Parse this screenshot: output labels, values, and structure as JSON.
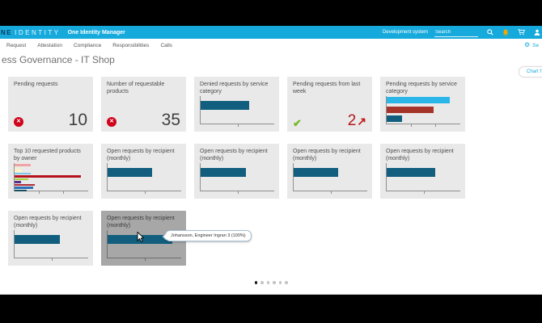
{
  "header": {
    "brand_prefix": "NE",
    "brand_suffix": "IDENTITY",
    "app_title": "One Identity Manager",
    "environment": "Development system",
    "search_placeholder": "Search"
  },
  "nav": {
    "items": [
      "Request",
      "Attestation",
      "Compliance",
      "Responsibilities",
      "Calls"
    ],
    "settings_label": "Se"
  },
  "page": {
    "title": "ess Governance - IT Shop",
    "chart_filter_label": "Chart f"
  },
  "colors": {
    "header_bg": "#16aadc",
    "accent_blue": "#16aadc",
    "tile_bg": "#e9e9e9",
    "tile_hover_bg": "#a7a7a7",
    "bar_teal": "#115e7e",
    "bar_cyan": "#2ab6e9",
    "bar_red": "#a5352a",
    "status_error": "#d0021b",
    "status_ok": "#76b82a",
    "trend_value_red": "#b2161b"
  },
  "tiles": [
    {
      "kind": "kpi",
      "title": "Pending requests",
      "icon": "error-circle-icon",
      "value": "10"
    },
    {
      "kind": "kpi",
      "title": "Number of requestable products",
      "icon": "error-circle-icon",
      "value": "35"
    },
    {
      "kind": "chart",
      "title": "Denied requests by service category",
      "bars": [
        {
          "color": "#115e7e",
          "pct": 66
        }
      ]
    },
    {
      "kind": "trend",
      "title": "Pending requests from last week",
      "icon": "check-icon",
      "value": "2",
      "trend": "up"
    },
    {
      "kind": "chart",
      "title": "Pending requests by service category",
      "bars": [
        {
          "color": "#2ab6e9",
          "pct": 86
        },
        {
          "color": "#a5352a",
          "pct": 64
        },
        {
          "color": "#115e7e",
          "pct": 21
        }
      ]
    },
    {
      "kind": "chart",
      "title": "Top 10 requested products by owner",
      "bars": [
        {
          "color": "#f0a3a6",
          "pct": 22
        },
        {
          "color": "#f5eed2",
          "pct": 8
        },
        {
          "color": "#fbf6bf",
          "pct": 10
        },
        {
          "color": "#7fc6e8",
          "pct": 22
        },
        {
          "color": "#b5121b",
          "pct": 90
        },
        {
          "color": "#a6cf3f",
          "pct": 19
        },
        {
          "color": "#5b2d8e",
          "pct": 9
        },
        {
          "color": "#b02c35",
          "pct": 27
        },
        {
          "color": "#2d6fb7",
          "pct": 25
        },
        {
          "color": "#17505f",
          "pct": 16
        }
      ]
    },
    {
      "kind": "chart",
      "title": "Open requests by recipient (monthly)",
      "bars": [
        {
          "color": "#115e7e",
          "pct": 60
        }
      ]
    },
    {
      "kind": "chart",
      "title": "Open requests by recipient (monthly)",
      "bars": [
        {
          "color": "#115e7e",
          "pct": 62
        }
      ]
    },
    {
      "kind": "chart",
      "title": "Open requests by recipient (monthly)",
      "bars": [
        {
          "color": "#115e7e",
          "pct": 60
        }
      ]
    },
    {
      "kind": "chart",
      "title": "Open requests by recipient (monthly)",
      "bars": [
        {
          "color": "#115e7e",
          "pct": 66
        }
      ]
    },
    {
      "kind": "chart",
      "title": "Open requests by recipient (monthly)",
      "bars": [
        {
          "color": "#115e7e",
          "pct": 62
        }
      ]
    },
    {
      "kind": "chart",
      "title": "Open requests by recipient (monthly)",
      "hovered": true,
      "bars": [
        {
          "color": "#115e7e",
          "pct": 88
        }
      ]
    }
  ],
  "tooltip": {
    "text": "Johansson, Engineer Ingran 3 (100%)"
  },
  "pagination": {
    "dots": 6,
    "active_index": 0
  }
}
